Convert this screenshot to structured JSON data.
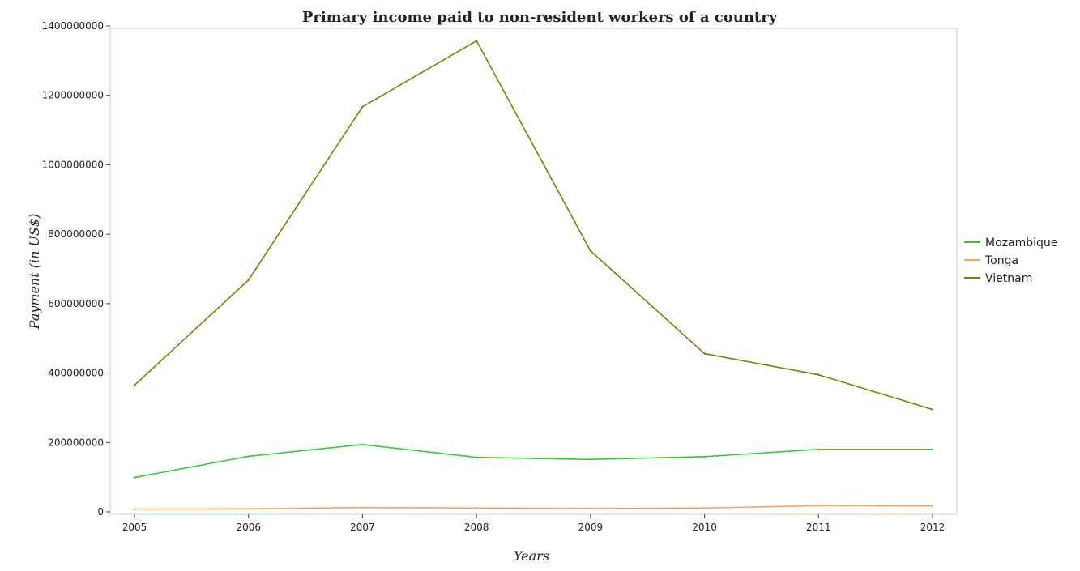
{
  "chart_data": {
    "type": "line",
    "title": "Primary income paid to non-resident workers of a country",
    "xlabel": "Years",
    "ylabel": "Payment (in US$)",
    "x": [
      "2005",
      "2006",
      "2007",
      "2008",
      "2009",
      "2010",
      "2011",
      "2012"
    ],
    "ylim": [
      0,
      1400000000
    ],
    "yticks": [
      0,
      200000000,
      400000000,
      600000000,
      800000000,
      1000000000,
      1200000000,
      1400000000
    ],
    "ytick_labels": [
      "0",
      "200000000",
      "400000000",
      "600000000",
      "800000000",
      "1000000000",
      "1200000000",
      "1400000000"
    ],
    "grid": false,
    "legend_position": "right",
    "series": [
      {
        "name": "Mozambique",
        "color": "#33cc33",
        "values": [
          99000000,
          160000000,
          194000000,
          157000000,
          151000000,
          159000000,
          180000000,
          180000000
        ]
      },
      {
        "name": "Tonga",
        "color": "#f4a460",
        "values": [
          8000000,
          8500000,
          12500000,
          11000000,
          10000000,
          11000000,
          18000000,
          17000000
        ]
      },
      {
        "name": "Vietnam",
        "color": "#808000",
        "values": [
          365000000,
          668000000,
          1167000000,
          1357000000,
          752000000,
          456000000,
          395000000,
          295000000
        ]
      }
    ]
  }
}
